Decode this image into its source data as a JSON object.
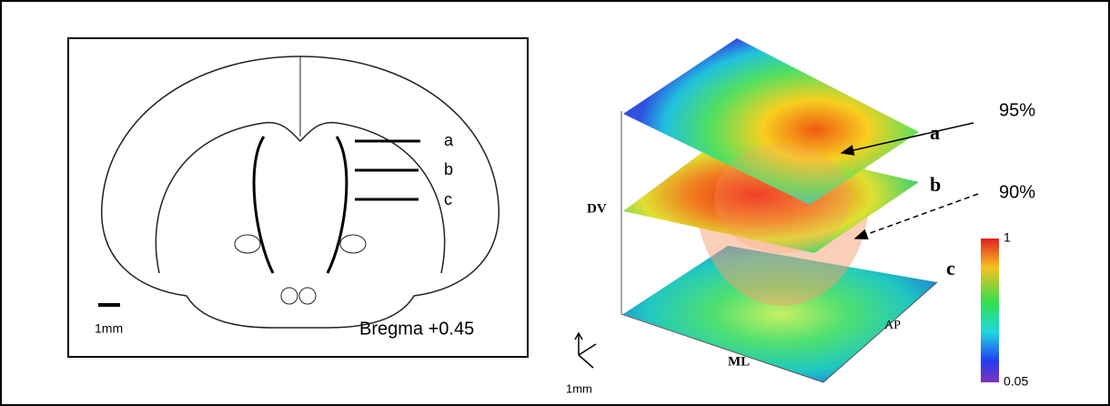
{
  "left_panel": {
    "labels": [
      "a",
      "b",
      "c"
    ],
    "scale_bar": "1mm",
    "bregma": "Bregma +0.45"
  },
  "right_panel": {
    "plane_labels": [
      "a",
      "b",
      "c"
    ],
    "arrows": [
      "95%",
      "90%"
    ],
    "axes": {
      "dv": "DV",
      "ml": "ML",
      "ap": "AP"
    },
    "scale": "1mm",
    "colorbar": {
      "max": 1,
      "min": 0.05
    }
  }
}
